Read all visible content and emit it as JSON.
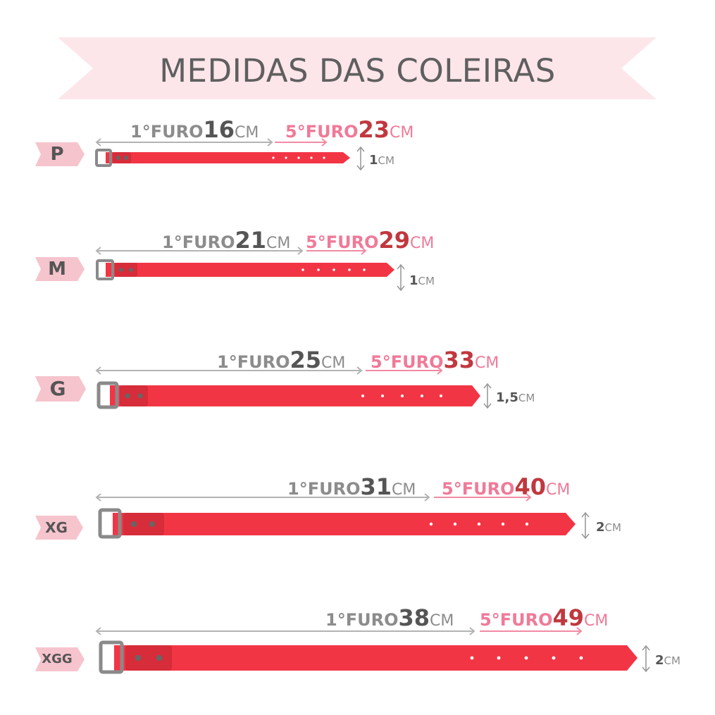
{
  "title": "MEDIDAS DAS COLEIRAS",
  "colors": {
    "banner": "#fde6ea",
    "strap": "#f23545",
    "tag": "#f6b3bf",
    "first_arrow": "#b3b3b3",
    "fifth_arrow": "#f28aa3"
  },
  "sizes": [
    {
      "size": "P",
      "first_prefix": "1°FURO",
      "first_value": "16",
      "first_unit": "CM",
      "fifth_prefix": "5°FURO",
      "fifth_value": "23",
      "fifth_unit": "CM",
      "width_value": "1",
      "width_unit": "CM"
    },
    {
      "size": "M",
      "first_prefix": "1°FURO",
      "first_value": "21",
      "first_unit": "CM",
      "fifth_prefix": "5°FURO",
      "fifth_value": "29",
      "fifth_unit": "CM",
      "width_value": "1",
      "width_unit": "CM"
    },
    {
      "size": "G",
      "first_prefix": "1°FURO",
      "first_value": "25",
      "first_unit": "CM",
      "fifth_prefix": "5°FURO",
      "fifth_value": "33",
      "fifth_unit": "CM",
      "width_value": "1,5",
      "width_unit": "CM"
    },
    {
      "size": "XG",
      "first_prefix": "1°FURO",
      "first_value": "31",
      "first_unit": "CM",
      "fifth_prefix": "5°FURO",
      "fifth_value": "40",
      "fifth_unit": "CM",
      "width_value": "2",
      "width_unit": "CM"
    },
    {
      "size": "XGG",
      "first_prefix": "1°FURO",
      "first_value": "38",
      "first_unit": "CM",
      "fifth_prefix": "5°FURO",
      "fifth_value": "49",
      "fifth_unit": "CM",
      "width_value": "2",
      "width_unit": "CM"
    }
  ]
}
